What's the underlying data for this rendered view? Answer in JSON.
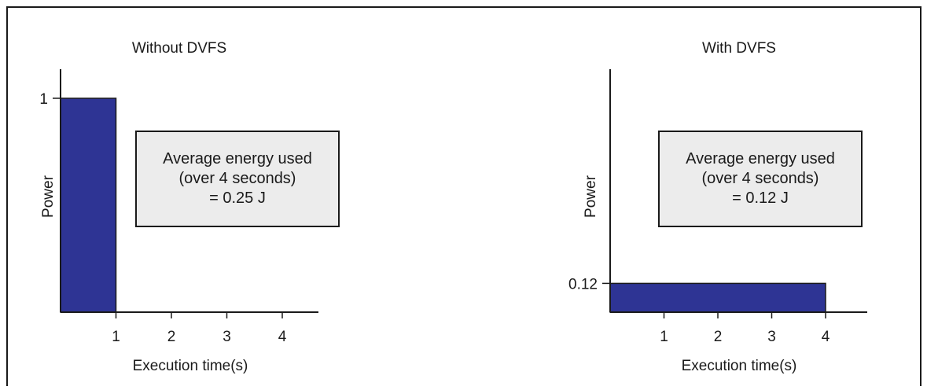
{
  "colors": {
    "bar": "#2e3494",
    "box_fill": "#ececec",
    "axis": "#1a1a1a"
  },
  "chart_data": [
    {
      "type": "bar",
      "title": "Without DVFS",
      "xlabel": "Execution time(s)",
      "ylabel": "Power",
      "x_ticks": [
        "1",
        "2",
        "3",
        "4"
      ],
      "xlim": [
        0,
        4.6
      ],
      "y_ticks": [
        {
          "value": 1,
          "label": "1"
        }
      ],
      "ylim": [
        0,
        1.12
      ],
      "bars": [
        {
          "x_start": 0,
          "x_end": 1,
          "value": 1
        }
      ],
      "annotation": [
        "Average energy used",
        "(over 4 seconds)",
        "= 0.25 J"
      ]
    },
    {
      "type": "bar",
      "title": "With DVFS",
      "xlabel": "Execution time(s)",
      "ylabel": "Power",
      "x_ticks": [
        "1",
        "2",
        "3",
        "4"
      ],
      "xlim": [
        0,
        4.6
      ],
      "y_ticks": [
        {
          "value": 0.12,
          "label": "0.12"
        }
      ],
      "ylim": [
        0,
        1.12
      ],
      "bars": [
        {
          "x_start": 0,
          "x_end": 4,
          "value": 0.12
        }
      ],
      "annotation": [
        "Average energy used",
        "(over 4 seconds)",
        "= 0.12 J"
      ]
    }
  ]
}
